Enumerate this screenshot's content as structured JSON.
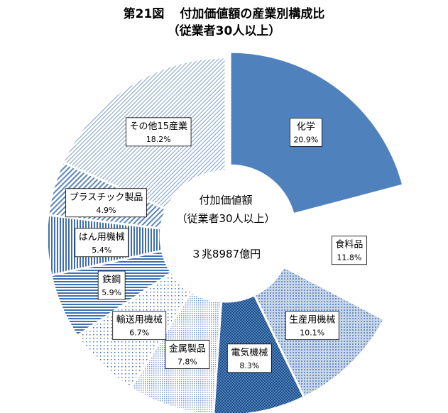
{
  "title": {
    "figure_no": "第21図",
    "text": "付加価値額の産業別構成比",
    "subtitle": "（従業者30人以上）"
  },
  "center": {
    "line1": "付加価値額",
    "line2": "（従業者30人以上）",
    "total": "３兆8987億円"
  },
  "chart_data": {
    "type": "pie",
    "donut": true,
    "start": "12 o'clock",
    "direction": "clockwise",
    "title": "付加価値額の産業別構成比（従業者30人以上）",
    "slices": [
      {
        "name": "化学",
        "value": 20.9,
        "label": "20.9%",
        "fill": "solid",
        "color": "#4f81bd",
        "exploded": true
      },
      {
        "name": "食料品",
        "value": 11.8,
        "label": "11.8%",
        "fill": "white",
        "color": "#ffffff"
      },
      {
        "name": "生産用機械",
        "value": 10.1,
        "label": "10.1%",
        "fill": "dots-light",
        "color": "#a9bfdc"
      },
      {
        "name": "電気機械",
        "value": 8.3,
        "label": "8.3%",
        "fill": "dots-dark",
        "color": "#3a6ea5"
      },
      {
        "name": "金属製品",
        "value": 7.8,
        "label": "7.8%",
        "fill": "dots-fine",
        "color": "#b8cbe4"
      },
      {
        "name": "輸送用機械",
        "value": 6.7,
        "label": "6.7%",
        "fill": "dots-sparse",
        "color": "#6f93c4"
      },
      {
        "name": "鉄鋼",
        "value": 5.9,
        "label": "5.9%",
        "fill": "horizontal-lines",
        "color": "#4a78b4"
      },
      {
        "name": "はん用機械",
        "value": 5.4,
        "label": "5.4%",
        "fill": "vertical-lines",
        "color": "#4a78b4"
      },
      {
        "name": "プラスチック製品",
        "value": 4.9,
        "label": "4.9%",
        "fill": "diagonal-lines",
        "color": "#5b85bd"
      },
      {
        "name": "その他15産業",
        "value": 18.2,
        "label": "18.2%",
        "fill": "diagonal-fine",
        "color": "#8ea9cf"
      }
    ]
  }
}
